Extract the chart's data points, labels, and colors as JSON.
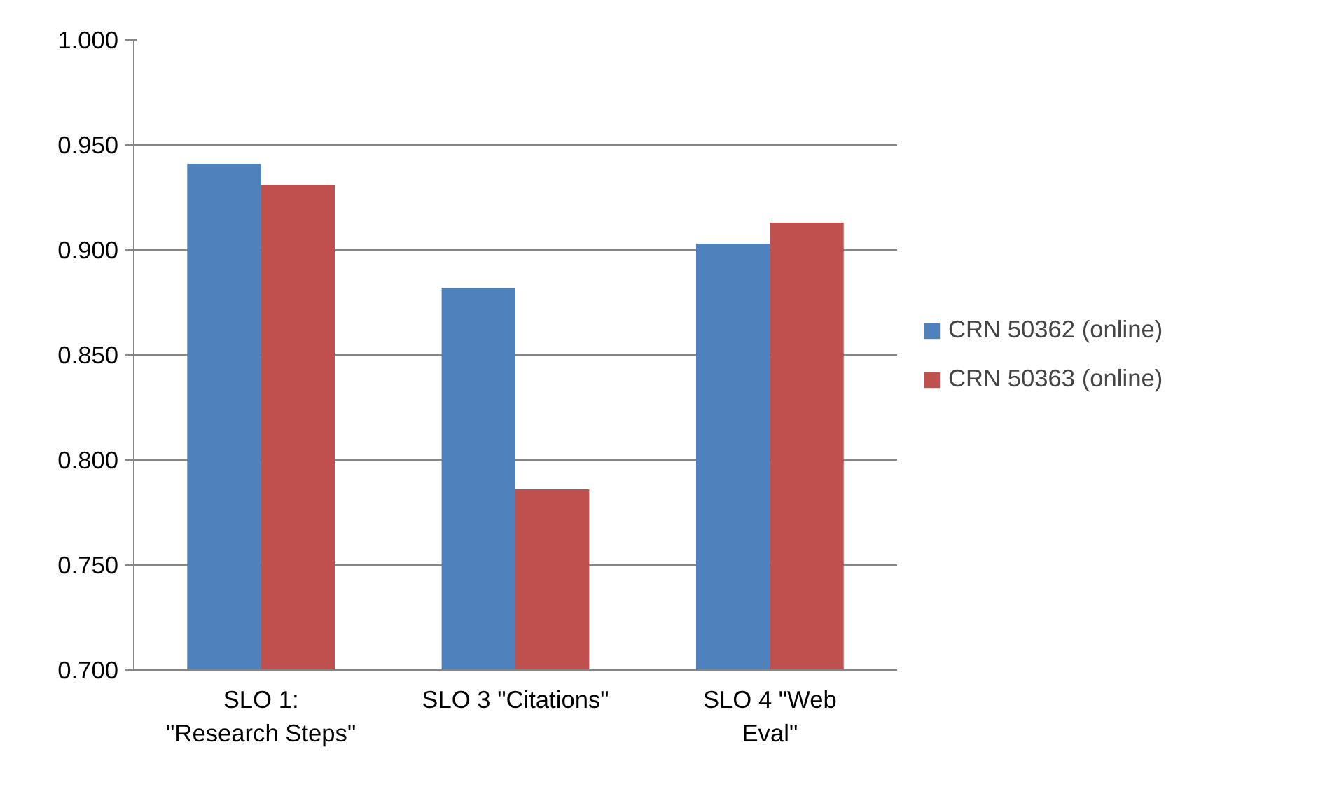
{
  "chart_data": {
    "type": "bar",
    "categories": [
      "SLO 1:\n\"Research Steps\"",
      "SLO 3 \"Citations\"",
      "SLO 4 \"Web\nEval\""
    ],
    "series": [
      {
        "name": "CRN 50362 (online)",
        "color": "#4f81bd",
        "values": [
          0.941,
          0.882,
          0.903
        ]
      },
      {
        "name": "CRN 50363 (online)",
        "color": "#c0504d",
        "values": [
          0.931,
          0.786,
          0.913
        ]
      }
    ],
    "ylim": [
      0.7,
      1.0
    ],
    "yticks": [
      {
        "value": 0.7,
        "label": "0.700"
      },
      {
        "value": 0.75,
        "label": "0.750"
      },
      {
        "value": 0.8,
        "label": "0.800"
      },
      {
        "value": 0.85,
        "label": "0.850"
      },
      {
        "value": 0.9,
        "label": "0.900"
      },
      {
        "value": 0.95,
        "label": "0.950"
      },
      {
        "value": 1.0,
        "label": "1.000"
      }
    ],
    "grid": "y",
    "legend": "right"
  }
}
